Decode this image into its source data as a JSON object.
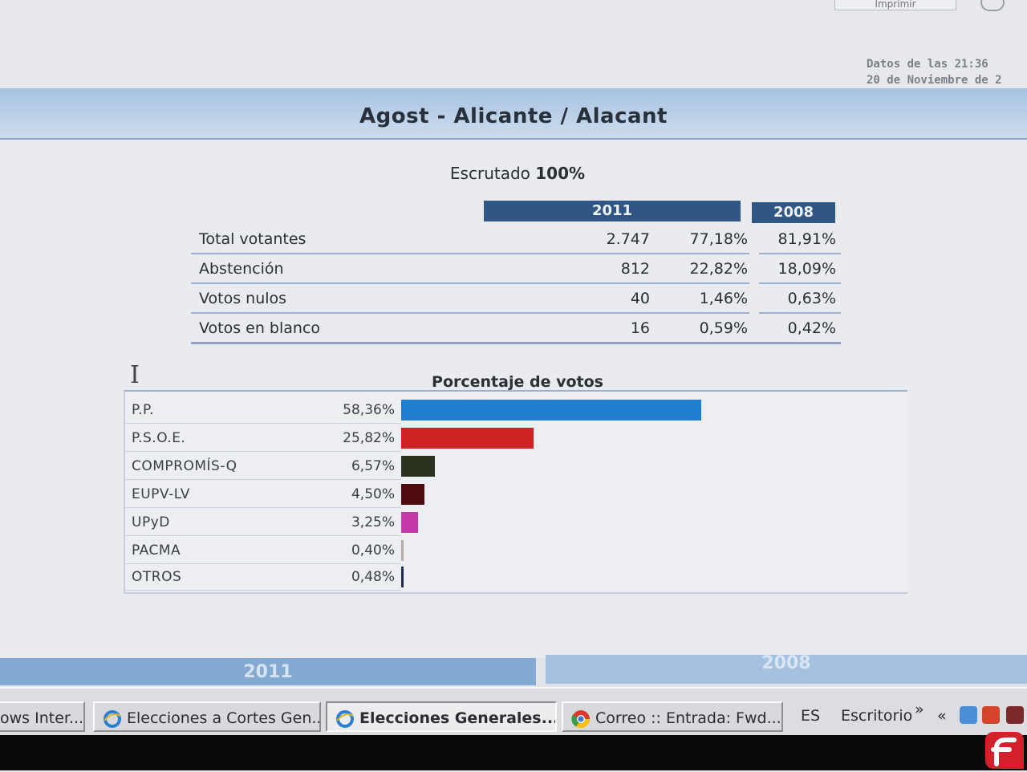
{
  "header": {
    "toolbar_button_label": "Imprimir",
    "datos_line1": "Datos de las 21:36",
    "datos_line2": "20 de Noviembre de 2"
  },
  "title": "Agost - Alicante / Alacant",
  "escrutado": {
    "label": "Escrutado",
    "value": "100%"
  },
  "summary": {
    "year_current": "2011",
    "year_previous": "2008",
    "rows": [
      {
        "label": "Total votantes",
        "count": "2.747",
        "pct": "77,18%",
        "pct_prev": "81,91%"
      },
      {
        "label": "Abstención",
        "count": "812",
        "pct": "22,82%",
        "pct_prev": "18,09%"
      },
      {
        "label": "Votos nulos",
        "count": "40",
        "pct": "1,46%",
        "pct_prev": "0,63%"
      },
      {
        "label": "Votos en blanco",
        "count": "16",
        "pct": "0,59%",
        "pct_prev": "0,42%"
      }
    ]
  },
  "chart_data": {
    "type": "bar",
    "orientation": "horizontal",
    "title": "Porcentaje de votos",
    "categories": [
      "P.P.",
      "P.S.O.E.",
      "COMPROMÍS-Q",
      "EUPV-LV",
      "UPyD",
      "PACMA",
      "OTROS"
    ],
    "values": [
      58.36,
      25.82,
      6.57,
      4.5,
      3.25,
      0.4,
      0.48
    ],
    "value_labels": [
      "58,36%",
      "25,82%",
      "6,57%",
      "4,50%",
      "3,25%",
      "0,40%",
      "0,48%"
    ],
    "colors": [
      "#1f7ed0",
      "#cf2222",
      "#2a3320",
      "#4e0c12",
      "#c43aa8",
      "#b9aaa6",
      "#1d2b4a"
    ],
    "xlim": [
      0,
      100
    ],
    "grid": false
  },
  "bottom_tabs": {
    "left": "2011",
    "right": "2008"
  },
  "taskbar": {
    "items": [
      {
        "label": "ows Inter...",
        "active": false
      },
      {
        "label": "Elecciones a Cortes Gen...",
        "active": false
      },
      {
        "label": "Elecciones Generales...",
        "active": true
      },
      {
        "label": "Correo :: Entrada: Fwd...",
        "active": false
      }
    ],
    "language": "ES",
    "desktop": "Escritorio",
    "more": "»",
    "tray_more": "«"
  }
}
